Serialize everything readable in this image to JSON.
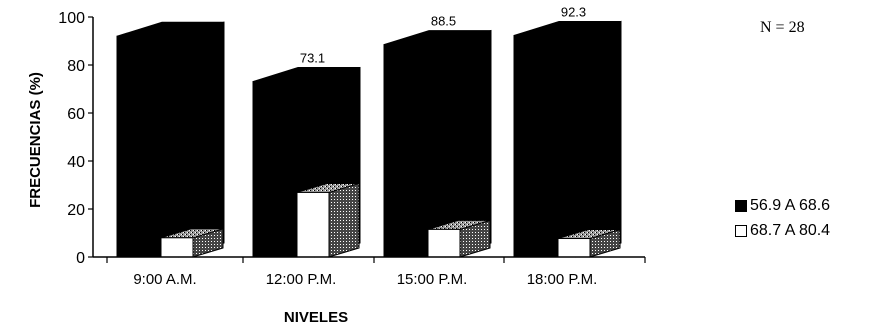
{
  "chart_data": {
    "type": "bar",
    "xlabel": "NIVELES",
    "ylabel": "FRECUENCIAS (%)",
    "ylim": [
      0,
      100
    ],
    "y_ticks": [
      "0",
      "20",
      "40",
      "60",
      "80",
      "100"
    ],
    "categories": [
      "9:00 A.M.",
      "12:00 P.M.",
      "15:00 P.M.",
      "18:00 P.M."
    ],
    "series": [
      {
        "name": "56.9 A 68.6",
        "values": [
          92,
          73.1,
          88.5,
          92.3
        ],
        "labels": [
          "",
          "73.1",
          "88.5",
          "92.3"
        ],
        "color": "#000000"
      },
      {
        "name": "68.7 A 80.4",
        "values": [
          8,
          26.9,
          11.5,
          7.7
        ],
        "labels": [
          "8",
          "26.9",
          "11.5",
          "7.7"
        ],
        "color": "#ffffff"
      }
    ],
    "legend_position": "right",
    "grid": false,
    "annotation": "N = 28"
  }
}
